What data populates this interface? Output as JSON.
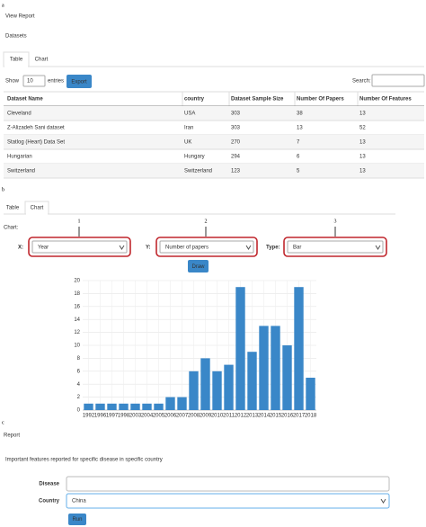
{
  "panel_labels": [
    "a",
    "b",
    "c"
  ],
  "view_report": {
    "title": "View Report",
    "subtitle": "Datasets",
    "tabs": [
      "Table",
      "Chart"
    ],
    "show": "Show",
    "entries_select": "10",
    "entries": "entries",
    "export": "Export",
    "search": "Search:",
    "table": {
      "columns": [
        "Dataset Name",
        "country",
        "Dataset Sample Size",
        "Number Of Papers",
        "Number Of Features"
      ],
      "rows": [
        [
          "Cleveland",
          "USA",
          303,
          38,
          13
        ],
        [
          "Z-Alizadeh Sani dataset",
          "Iran",
          303,
          13,
          52
        ],
        [
          "Statlog (Heart) Data Set",
          "UK",
          270,
          7,
          13
        ],
        [
          "Hungarian",
          "Hungary",
          294,
          6,
          13
        ],
        [
          "Switzerland",
          "Switzerland",
          123,
          5,
          13
        ]
      ]
    }
  },
  "chart_form": {
    "tabs": [
      "Table",
      "Chart"
    ],
    "heading": "Chart:",
    "callouts": [
      "1",
      "2",
      "3"
    ],
    "fields": [
      {
        "label": "X:",
        "value": "Year"
      },
      {
        "label": "Y:",
        "value": "Number of papers"
      },
      {
        "label": "Type:",
        "value": "Bar"
      }
    ],
    "button": "Draw"
  },
  "chart_data": {
    "type": "bar",
    "categories": [
      "1992",
      "1996",
      "1997",
      "1998",
      "2003",
      "2004",
      "2005",
      "2006",
      "2007",
      "2008",
      "2009",
      "2010",
      "2011",
      "2012",
      "2013",
      "2014",
      "2015",
      "2016",
      "2017",
      "2018"
    ],
    "values": [
      1,
      1,
      1,
      1,
      1,
      1,
      1,
      2,
      2,
      6,
      8,
      6,
      7,
      19,
      9,
      13,
      13,
      10,
      19,
      5
    ],
    "color": "#3a87c8",
    "ylim": [
      0,
      20
    ],
    "yticks": [
      0,
      2,
      4,
      6,
      8,
      10,
      12,
      14,
      16,
      18,
      20
    ],
    "grid": true
  },
  "report": {
    "title": "Report",
    "subtitle": "Important features reported for specific disease in specific country",
    "fields": [
      {
        "label": "Disease"
      },
      {
        "label": "Country",
        "value": "China"
      }
    ],
    "button": "Run"
  }
}
